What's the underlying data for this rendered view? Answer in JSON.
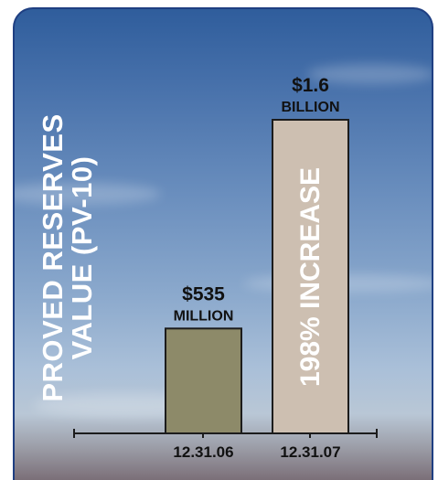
{
  "chart_data": {
    "type": "bar",
    "ylabel_lines": [
      "PROVED RESERVES",
      "VALUE (PV-10)"
    ],
    "categories": [
      "12.31.06",
      "12.31.07"
    ],
    "values": [
      535,
      1600
    ],
    "unit": "million",
    "data_labels": [
      {
        "amount": "$535",
        "scale": "MILLION"
      },
      {
        "amount": "$1.6",
        "scale": "BILLION"
      }
    ],
    "bar_colors": [
      "#8d8a69",
      "#cdbfb1"
    ],
    "bar_border_color": "#1c1c1c",
    "annotation": "198% INCREASE",
    "ylim": [
      0,
      1600
    ],
    "grid": false,
    "legend": "none"
  }
}
